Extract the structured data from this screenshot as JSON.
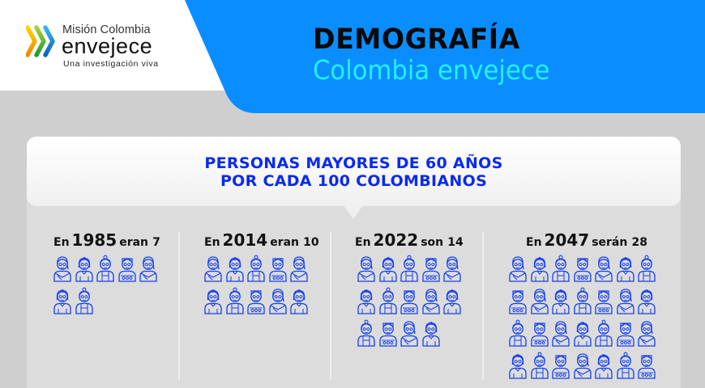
{
  "header": {
    "logo": {
      "line1": "Misión Colombia",
      "line2": "envejece",
      "tagline": "Una investigación viva",
      "chevron_colors": [
        "#f6b400",
        "#48b83a",
        "#1f86d6"
      ]
    },
    "title": "DEMOGRAFÍA",
    "subtitle": "Colombia envejece",
    "banner_color": "#0a8eff",
    "subtitle_color": "#22f1ff"
  },
  "panel": {
    "title_line1": "PERSONAS MAYORES DE 60 AÑOS",
    "title_line2": "POR CADA 100 COLOMBIANOS",
    "title_color": "#0a2af0",
    "icon_color": "#1440f0",
    "columns": [
      {
        "prefix": "En",
        "year": "1985",
        "verb": "eran",
        "count": "7",
        "count_value": 7,
        "grid_cols": 5
      },
      {
        "prefix": "En",
        "year": "2014",
        "verb": "eran",
        "count": "10",
        "count_value": 10,
        "grid_cols": 5
      },
      {
        "prefix": "En",
        "year": "2022",
        "verb": "son",
        "count": "14",
        "count_value": 14,
        "grid_cols": 5
      },
      {
        "prefix": "En",
        "year": "2047",
        "verb": "serán",
        "count": "28",
        "count_value": 28,
        "grid_cols": 7
      }
    ],
    "icon_types": [
      "grandma-scarf-icon",
      "grandma-bun-icon",
      "grandma-topknot-icon",
      "grandpa-sweater-icon"
    ]
  },
  "chart_data": {
    "type": "pictogram",
    "title": "PERSONAS MAYORES DE 60 AÑOS POR CADA 100 COLOMBIANOS",
    "categories": [
      "1985",
      "2014",
      "2022",
      "2047"
    ],
    "values": [
      7,
      10,
      14,
      28
    ],
    "unit": "personas mayores de 60 años por cada 100 colombianos"
  }
}
